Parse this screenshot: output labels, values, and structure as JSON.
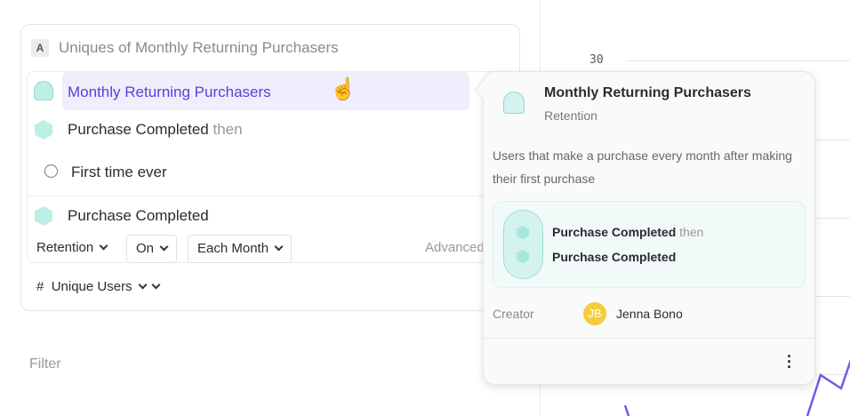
{
  "chart": {
    "ytick_top": "30",
    "line_color": "#6c5ce7"
  },
  "metric": {
    "badge": "A",
    "title": "Uniques of Monthly Returning Purchasers"
  },
  "rows": {
    "selected": "Monthly Returning Purchasers",
    "event1": "Purchase Completed",
    "then": "then",
    "time": "First time ever",
    "event2": "Purchase Completed"
  },
  "controls": {
    "retention": "Retention",
    "on": "On",
    "period": "Each Month",
    "advanced": "Advanced"
  },
  "measure": {
    "symbol": "#",
    "label": "Unique Users"
  },
  "filter_label": "Filter",
  "popover": {
    "title": "Monthly Returning Purchasers",
    "type": "Retention",
    "description": "Users that make a purchase every month after making their first purchase",
    "step1": "Purchase Completed",
    "then": "then",
    "step2": "Purchase Completed",
    "creator_label": "Creator",
    "creator_initials": "JB",
    "creator_name": "Jenna Bono",
    "avatar_color": "#f5cd3c"
  },
  "colors": {
    "accent": "#5a3fd6",
    "teal": "#bfeee6"
  }
}
